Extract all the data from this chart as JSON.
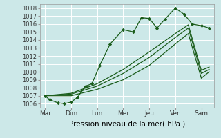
{
  "background_color": "#cce8e8",
  "grid_color": "#aacccc",
  "line_color": "#1a5c1a",
  "x_labels": [
    "Mar",
    "Dim",
    "Lun",
    "Mer",
    "Jeu",
    "Ven",
    "Sam"
  ],
  "xlabel": "Pression niveau de la mer( hPa )",
  "ylim": [
    1005.5,
    1018.5
  ],
  "yticks": [
    1006,
    1007,
    1008,
    1009,
    1010,
    1011,
    1012,
    1013,
    1014,
    1015,
    1016,
    1017,
    1018
  ],
  "x_positions": [
    0,
    1,
    2,
    3,
    4,
    5,
    6
  ],
  "line1_x": [
    0,
    0.18,
    0.5,
    0.75,
    1.0,
    1.25,
    1.55,
    1.8,
    2.1,
    2.5,
    3.0,
    3.4,
    3.7,
    4.0,
    4.3,
    4.6,
    5.0,
    5.35,
    5.65,
    6.0,
    6.3
  ],
  "line1_y": [
    1007.0,
    1006.5,
    1006.1,
    1006.0,
    1006.2,
    1006.8,
    1008.2,
    1008.5,
    1010.8,
    1013.5,
    1015.3,
    1015.0,
    1016.8,
    1016.7,
    1015.5,
    1016.6,
    1018.0,
    1017.2,
    1016.0,
    1015.8,
    1015.5
  ],
  "line2_x": [
    0,
    1,
    2,
    3,
    4,
    5,
    5.5,
    6.0,
    6.3
  ],
  "line2_y": [
    1007.0,
    1007.0,
    1007.8,
    1009.0,
    1010.8,
    1013.5,
    1014.8,
    1009.2,
    1010.0
  ],
  "line3_x": [
    0,
    1,
    2,
    3,
    4,
    5,
    5.5,
    6.0,
    6.3
  ],
  "line3_y": [
    1007.0,
    1007.2,
    1008.2,
    1009.8,
    1011.8,
    1014.3,
    1015.5,
    1009.8,
    1010.3
  ],
  "line4_x": [
    0,
    1,
    2,
    3,
    4,
    5,
    5.5,
    6.0,
    6.3
  ],
  "line4_y": [
    1007.0,
    1007.3,
    1008.5,
    1010.3,
    1012.5,
    1014.8,
    1015.9,
    1010.2,
    1010.6
  ]
}
